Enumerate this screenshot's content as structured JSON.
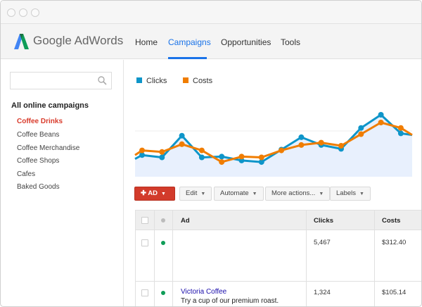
{
  "brand": {
    "name": "Google AdWords"
  },
  "nav": {
    "items": [
      {
        "label": "Home"
      },
      {
        "label": "Campaigns",
        "active": true
      },
      {
        "label": "Opportunities"
      },
      {
        "label": "Tools"
      }
    ]
  },
  "sidebar": {
    "search_placeholder": "",
    "title": "All online campaigns",
    "items": [
      {
        "label": "Coffee Drinks",
        "active": true
      },
      {
        "label": "Coffee Beans"
      },
      {
        "label": "Coffee Merchandise"
      },
      {
        "label": "Coffee Shops"
      },
      {
        "label": "Cafes"
      },
      {
        "label": "Baked Goods"
      }
    ]
  },
  "colors": {
    "clicks": "#0e95c9",
    "costs": "#f07d00",
    "accent": "#1a73e8",
    "active_campaign": "#d93b2b",
    "add_button": "#d23b2b",
    "status_enabled": "#0f9d58"
  },
  "chart_data": {
    "type": "line",
    "legend_position": "top-left",
    "grid": true,
    "series": [
      {
        "name": "Clicks",
        "color": "#0e95c9",
        "values": [
          23,
          28,
          25,
          53,
          25,
          26,
          21,
          19,
          35,
          51,
          41,
          36,
          63,
          80,
          56,
          54
        ],
        "area_fill": true
      },
      {
        "name": "Costs",
        "color": "#f07d00",
        "values": [
          28,
          34,
          32,
          42,
          34,
          19,
          26,
          25,
          34,
          41,
          44,
          40,
          55,
          70,
          63,
          54
        ]
      }
    ]
  },
  "toolbar": {
    "add_label": "AD",
    "edit": "Edit",
    "automate": "Automate",
    "more": "More actions...",
    "labels": "Labels"
  },
  "table": {
    "headers": {
      "ad": "Ad",
      "clicks": "Clicks",
      "costs": "Costs"
    },
    "rows": [
      {
        "ad_title": "",
        "ad_text": "",
        "clicks": "5,467",
        "costs": "$312.40",
        "status": "enabled"
      },
      {
        "ad_title": "Victoria Coffee",
        "ad_text": "Try a cup of our premium roast.",
        "clicks": "1,324",
        "costs": "$105.14",
        "status": "enabled"
      }
    ]
  }
}
